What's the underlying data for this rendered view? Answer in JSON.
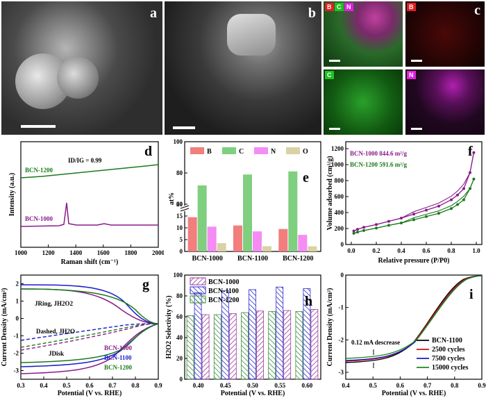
{
  "figure": {
    "panel_labels": {
      "a": "a",
      "b": "b",
      "c": "c",
      "d": "d",
      "e": "e",
      "f": "f",
      "g": "g",
      "h": "h",
      "i": "i"
    },
    "eds_channels": [
      "B",
      "C",
      "N"
    ],
    "eds_colors": {
      "B": "#e02020",
      "C": "#22c022",
      "N": "#e020e0"
    }
  },
  "chart_data": [
    {
      "id": "d",
      "type": "line",
      "xlabel": "Raman shift (cm⁻¹)",
      "ylabel": "Intensity (a.u.)",
      "xlim": [
        1000,
        2000
      ],
      "xticks": [
        1000,
        1200,
        1400,
        1600,
        1800,
        2000
      ],
      "annotation": "ID/IG = 0.99",
      "series": [
        {
          "name": "BCN-1200",
          "color": "#1a7a1a"
        },
        {
          "name": "BCN-1000",
          "color": "#8a1a8a"
        }
      ]
    },
    {
      "id": "e",
      "type": "bar",
      "ylabel": "at%",
      "categories": [
        "BCN-1000",
        "BCN-1100",
        "BCN-1200"
      ],
      "yticks": [
        0,
        5,
        10,
        15,
        20,
        60,
        80,
        100
      ],
      "legend": [
        "B",
        "C",
        "N",
        "O"
      ],
      "colors": [
        "#f27e7e",
        "#7fcf7f",
        "#f48cf4",
        "#d8d2a4"
      ],
      "series": [
        {
          "name": "B",
          "values": [
            14.5,
            11,
            9.5
          ]
        },
        {
          "name": "C",
          "values": [
            72,
            79,
            81
          ]
        },
        {
          "name": "N",
          "values": [
            10.5,
            8.5,
            7
          ]
        },
        {
          "name": "O",
          "values": [
            3.5,
            2.2,
            2.2
          ]
        }
      ]
    },
    {
      "id": "f",
      "type": "line",
      "xlabel": "Relative pressure (P/P0)",
      "ylabel": "Volume adsorbed (cm³/g)",
      "xlim": [
        0,
        1.0
      ],
      "ylim": [
        0,
        1200
      ],
      "xticks": [
        0.0,
        0.2,
        0.4,
        0.6,
        0.8,
        1.0
      ],
      "yticks": [
        0,
        200,
        400,
        600,
        800,
        1000,
        1200
      ],
      "legend": [
        "BCN-1000  844.6 m²/g",
        "BCN-1200  591.6 m²/g"
      ],
      "series": [
        {
          "name": "BCN-1000",
          "color": "#8a1a8a",
          "x": [
            0.02,
            0.05,
            0.1,
            0.2,
            0.3,
            0.4,
            0.5,
            0.6,
            0.7,
            0.8,
            0.85,
            0.9,
            0.95,
            0.98
          ],
          "y": [
            170,
            190,
            215,
            250,
            290,
            330,
            380,
            430,
            480,
            560,
            620,
            700,
            900,
            1150
          ]
        },
        {
          "name": "BCN-1200",
          "color": "#1a7a1a",
          "x": [
            0.02,
            0.05,
            0.1,
            0.2,
            0.3,
            0.4,
            0.5,
            0.6,
            0.7,
            0.8,
            0.85,
            0.9,
            0.95,
            0.98
          ],
          "y": [
            140,
            155,
            175,
            205,
            240,
            270,
            310,
            350,
            390,
            450,
            500,
            560,
            700,
            820
          ]
        }
      ]
    },
    {
      "id": "g",
      "type": "line",
      "xlabel": "Potential (V vs. RHE)",
      "ylabel": "Current Density (mA/cm²)",
      "xlim": [
        0.3,
        0.9
      ],
      "ylim": [
        -3.5,
        2.5
      ],
      "xticks": [
        0.3,
        0.4,
        0.5,
        0.6,
        0.7,
        0.8,
        0.9
      ],
      "yticks": [
        -3,
        -2,
        -1,
        0,
        1,
        2
      ],
      "annotations": [
        "JRing, JH2O2",
        "Dashed, JH2O",
        "JDisk"
      ],
      "legend": [
        "BCN-1000",
        "BCN-1100",
        "BCN-1200"
      ],
      "colors": [
        "#8a1a8a",
        "#1a1acc",
        "#1a7a1a"
      ]
    },
    {
      "id": "h",
      "type": "bar",
      "xlabel": "Potential (V vs. RHE)",
      "ylabel": "H2O2 Selectivity (%)",
      "categories": [
        "0.40",
        "0.45",
        "0.50",
        "0.55",
        "0.60"
      ],
      "yticks": [
        0,
        20,
        40,
        60,
        80,
        100
      ],
      "ylim": [
        0,
        100
      ],
      "legend": [
        "BCN-1000",
        "BCN-1100",
        "BCN-1200"
      ],
      "colors": [
        "#9a3a9a",
        "#2a2acc",
        "#3a8a3a"
      ],
      "series": [
        {
          "name": "BCN-1200",
          "values": [
            61,
            62,
            64,
            65,
            65
          ]
        },
        {
          "name": "BCN-1100",
          "values": [
            83,
            85,
            86,
            88.5,
            87
          ]
        },
        {
          "name": "BCN-1000",
          "values": [
            62,
            63,
            65.5,
            66,
            67
          ]
        }
      ]
    },
    {
      "id": "i",
      "type": "line",
      "xlabel": "Potential (V vs. RHE)",
      "ylabel": "Current Density (mA/cm²)",
      "xlim": [
        0.4,
        0.9
      ],
      "ylim": [
        -3,
        0
      ],
      "xticks": [
        0.4,
        0.5,
        0.6,
        0.7,
        0.8,
        0.9
      ],
      "yticks": [
        0,
        -1,
        -2,
        -3
      ],
      "annotation": "0.12 mA descrease",
      "legend": [
        "BCN-1100",
        "2500 cycles",
        "7500 cycles",
        "15000 cycles"
      ],
      "colors": [
        "#000000",
        "#d01010",
        "#1a1acc",
        "#1a8a1a"
      ]
    }
  ]
}
